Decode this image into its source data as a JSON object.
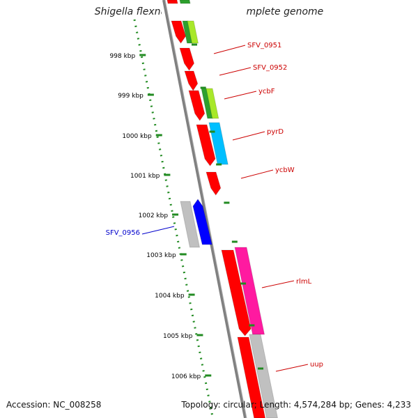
{
  "title": "Shigella flexneri 5 str. 8401, complete genome",
  "footer": {
    "accession": "Accession: NC_008258",
    "summary": "Topology: circular; Length: 4,574,284 bp; Genes: 4,233"
  },
  "scale_labels": [
    "998 kbp",
    "999 kbp",
    "1000 kbp",
    "1001 kbp",
    "1002 kbp",
    "1003 kbp",
    "1004 kbp",
    "1005 kbp",
    "1006 kbp"
  ],
  "gene_labels": [
    {
      "text": "SFV_0951",
      "color": "#cc0000"
    },
    {
      "text": "SFV_0952",
      "color": "#cc0000"
    },
    {
      "text": "ycbF",
      "color": "#cc0000"
    },
    {
      "text": "pyrD",
      "color": "#cc0000"
    },
    {
      "text": "ycbW",
      "color": "#cc0000"
    },
    {
      "text": "SFV_0956",
      "color": "#0000cc"
    },
    {
      "text": "rlmL",
      "color": "#cc0000"
    },
    {
      "text": "uup",
      "color": "#cc0000"
    }
  ],
  "colors": {
    "red": "#ff0000",
    "green": "#2ea02e",
    "lime": "#a8e82a",
    "cyan": "#00bfff",
    "blue": "#0000ff",
    "magenta": "#ff1aa0",
    "gray": "#c0c0c0",
    "scale": "#228b22",
    "backbone": "#808080"
  }
}
